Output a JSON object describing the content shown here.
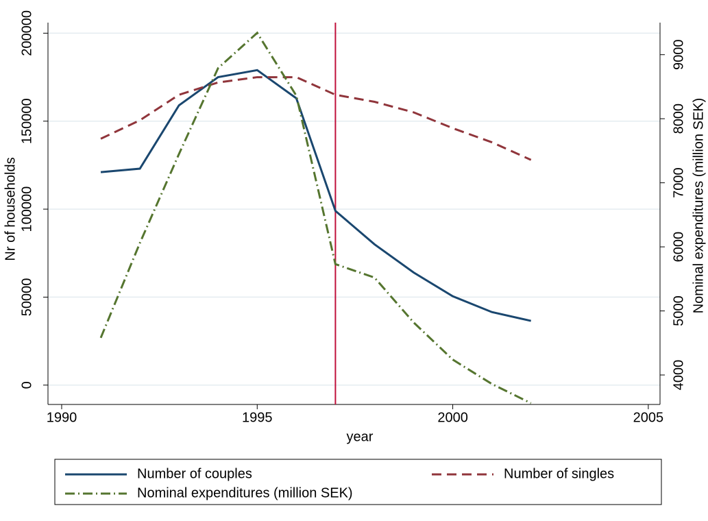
{
  "chart_data": {
    "type": "line",
    "x": [
      1991,
      1992,
      1993,
      1994,
      1995,
      1996,
      1997,
      1998,
      1999,
      2000,
      2001,
      2002
    ],
    "xlabel": "year",
    "ylabel": "Nr of households",
    "y2label": "Nominal expenditures (million SEK)",
    "xlim": [
      1989.65,
      2005.3
    ],
    "xticks": [
      1990,
      1995,
      2000,
      2005
    ],
    "ylim": [
      -11000,
      206000
    ],
    "yticks": [
      0,
      50000,
      100000,
      150000,
      200000
    ],
    "y2lim": [
      3540,
      9500
    ],
    "y2ticks": [
      4000,
      5000,
      6000,
      7000,
      8000,
      9000
    ],
    "grid": true,
    "grid_color": "#e4ecf0",
    "reference_line": {
      "x": 1997,
      "color": "#c0103a"
    },
    "series": [
      {
        "name": "Number of couples",
        "color": "#1a476f",
        "dash": "solid",
        "values": [
          121000,
          123000,
          159000,
          175000,
          179000,
          163000,
          99000,
          80000,
          64000,
          50500,
          41500,
          36500
        ]
      },
      {
        "name": "Number of singles",
        "color": "#90353b",
        "dash": "dash",
        "values": [
          140000,
          150500,
          165000,
          172000,
          175000,
          175000,
          165000,
          161000,
          155000,
          146000,
          138000,
          128000
        ]
      },
      {
        "name": "Nominal expenditures (million SEK)",
        "color": "#55752f",
        "dash": "dashdot",
        "axis": "y2",
        "values": [
          4580,
          6060,
          7450,
          8790,
          9340,
          8360,
          5730,
          5520,
          4820,
          4240,
          3860,
          3560
        ]
      }
    ]
  }
}
